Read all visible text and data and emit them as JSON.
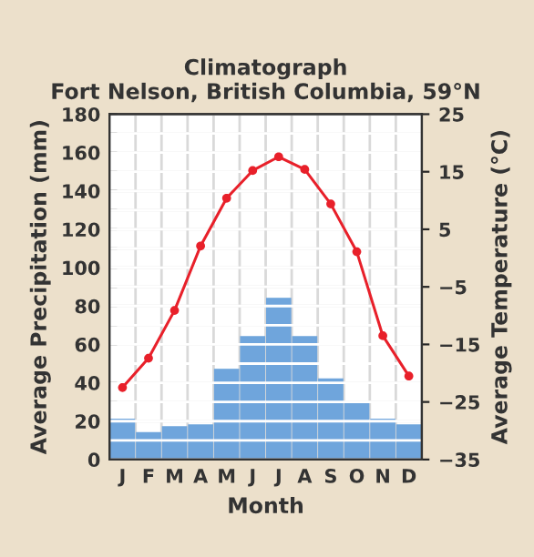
{
  "chart_data": {
    "type": "bar",
    "title": "Climatograph\nFort Nelson, British Columbia, 59°N",
    "xlabel": "Month",
    "ylabel": "Average Precipitation (mm)",
    "y2label": "Average Temperature (°C)",
    "categories": [
      "J",
      "F",
      "M",
      "A",
      "M",
      "J",
      "J",
      "A",
      "S",
      "O",
      "N",
      "D"
    ],
    "series": [
      {
        "color": "#6fa5dc",
        "values": [
          21,
          14,
          17,
          18,
          47,
          64,
          84,
          64,
          42,
          30,
          21,
          18
        ]
      },
      {
        "type": "line",
        "axis": "y2",
        "color": "#e8202a",
        "marker": "circle",
        "values": [
          -22.5,
          -17.4,
          -9.1,
          2.1,
          10.4,
          15.2,
          17.6,
          15.4,
          9.4,
          1.1,
          -13.5,
          -20.5
        ]
      }
    ],
    "ylim": [
      0,
      180
    ],
    "yticks": [
      0,
      {
        "value": 10,
        "label": null
      },
      20,
      {
        "value": 30,
        "label": null
      },
      40,
      {
        "value": 50,
        "label": null
      },
      60,
      {
        "value": 70,
        "label": null
      },
      80,
      {
        "value": 90,
        "label": null
      },
      100,
      {
        "value": 110,
        "label": null
      },
      120,
      {
        "value": 130,
        "label": null
      },
      140,
      {
        "value": 150,
        "label": null
      },
      160,
      {
        "value": 170,
        "label": null
      },
      180
    ],
    "y2lim": [
      -35,
      25
    ],
    "y2ticks": [
      {
        "value": -35,
        "label": "−35"
      },
      {
        "value": -25,
        "label": "−25"
      },
      {
        "value": -15,
        "label": "−15"
      },
      {
        "value": -5,
        "label": "−5"
      },
      5,
      15,
      25
    ],
    "grid": true,
    "legend": false
  }
}
